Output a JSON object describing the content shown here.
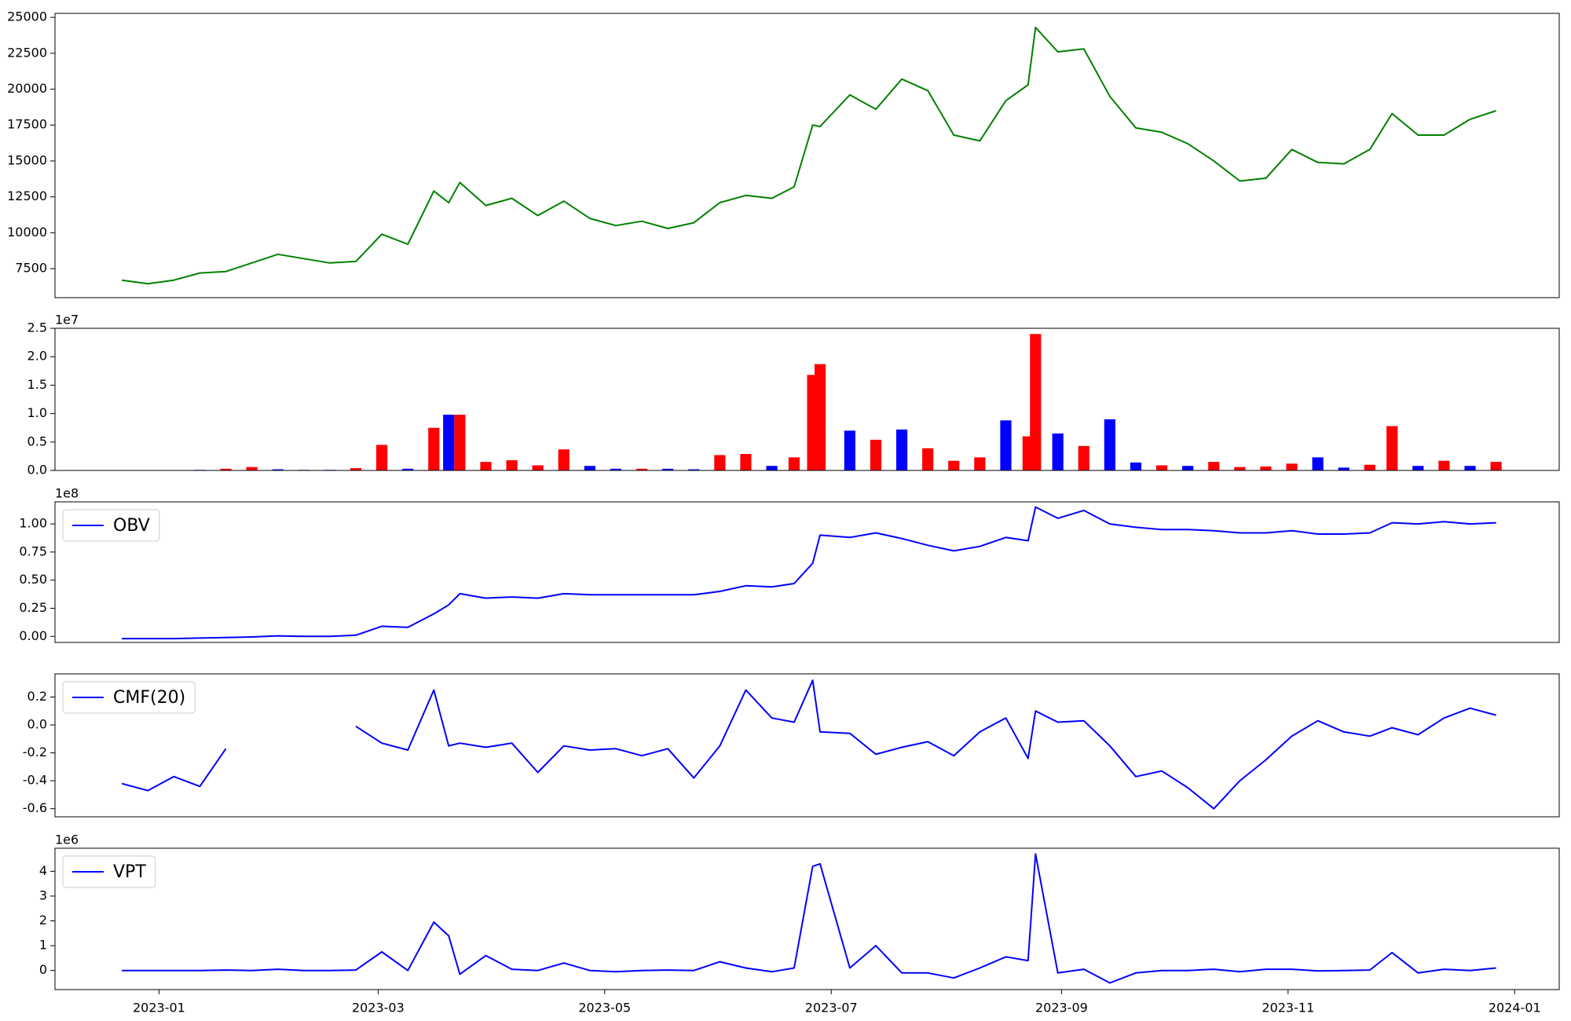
{
  "chart_data": [
    {
      "type": "line",
      "x": [
        "2022-12-22",
        "2022-12-29",
        "2023-01-05",
        "2023-01-12",
        "2023-01-19",
        "2023-01-26",
        "2023-02-02",
        "2023-02-09",
        "2023-02-16",
        "2023-02-23",
        "2023-03-02",
        "2023-03-09",
        "2023-03-16",
        "2023-03-20",
        "2023-03-23",
        "2023-03-30",
        "2023-04-06",
        "2023-04-13",
        "2023-04-20",
        "2023-04-27",
        "2023-05-04",
        "2023-05-11",
        "2023-05-18",
        "2023-05-25",
        "2023-06-01",
        "2023-06-08",
        "2023-06-15",
        "2023-06-21",
        "2023-06-26",
        "2023-06-28",
        "2023-07-06",
        "2023-07-13",
        "2023-07-20",
        "2023-07-27",
        "2023-08-03",
        "2023-08-10",
        "2023-08-17",
        "2023-08-23",
        "2023-08-25",
        "2023-08-31",
        "2023-09-07",
        "2023-09-14",
        "2023-09-21",
        "2023-09-28",
        "2023-10-05",
        "2023-10-12",
        "2023-10-19",
        "2023-10-26",
        "2023-11-02",
        "2023-11-09",
        "2023-11-16",
        "2023-11-23",
        "2023-11-29",
        "2023-12-06",
        "2023-12-13",
        "2023-12-20",
        "2023-12-27"
      ],
      "series": [
        {
          "color": "green",
          "values": [
            6700,
            6450,
            6700,
            7200,
            7300,
            7900,
            8500,
            8200,
            7900,
            8000,
            9900,
            9200,
            12900,
            12100,
            13500,
            11900,
            12400,
            11200,
            12200,
            11000,
            10500,
            10800,
            10300,
            10700,
            12100,
            12600,
            12400,
            13200,
            17500,
            17400,
            19600,
            18600,
            20700,
            19900,
            16800,
            16400,
            19200,
            20300,
            24300,
            22600,
            22800,
            19500,
            17300,
            17000,
            16200,
            15000,
            13600,
            13800,
            15800,
            14900,
            14800,
            15800,
            18300,
            16800,
            16800,
            17900,
            18500
          ]
        }
      ],
      "xlim": [
        "2022-12-04",
        "2024-01-13"
      ],
      "ylim": [
        5480,
        25280
      ],
      "yticks": [
        7500,
        10000,
        12500,
        15000,
        17500,
        20000,
        22500,
        25000
      ]
    },
    {
      "type": "bar",
      "x": [
        "2022-12-22",
        "2022-12-29",
        "2023-01-05",
        "2023-01-12",
        "2023-01-19",
        "2023-01-26",
        "2023-02-02",
        "2023-02-09",
        "2023-02-16",
        "2023-02-23",
        "2023-03-02",
        "2023-03-09",
        "2023-03-16",
        "2023-03-20",
        "2023-03-23",
        "2023-03-30",
        "2023-04-06",
        "2023-04-13",
        "2023-04-20",
        "2023-04-27",
        "2023-05-04",
        "2023-05-11",
        "2023-05-18",
        "2023-05-25",
        "2023-06-01",
        "2023-06-08",
        "2023-06-15",
        "2023-06-21",
        "2023-06-26",
        "2023-06-28",
        "2023-07-06",
        "2023-07-13",
        "2023-07-20",
        "2023-07-27",
        "2023-08-03",
        "2023-08-10",
        "2023-08-17",
        "2023-08-23",
        "2023-08-25",
        "2023-08-31",
        "2023-09-07",
        "2023-09-14",
        "2023-09-21",
        "2023-09-28",
        "2023-10-05",
        "2023-10-12",
        "2023-10-19",
        "2023-10-26",
        "2023-11-02",
        "2023-11-09",
        "2023-11-16",
        "2023-11-23",
        "2023-11-29",
        "2023-12-06",
        "2023-12-13",
        "2023-12-20",
        "2023-12-27"
      ],
      "values": [
        0,
        0,
        0,
        100000,
        300000,
        600000,
        200000,
        100000,
        100000,
        400000,
        4500000,
        300000,
        7500000,
        9800000,
        9800000,
        1500000,
        1800000,
        900000,
        3700000,
        800000,
        300000,
        300000,
        300000,
        200000,
        2700000,
        2900000,
        800000,
        2300000,
        16800000,
        18700000,
        7000000,
        5400000,
        7200000,
        3900000,
        1700000,
        2300000,
        8800000,
        6000000,
        24000000,
        6500000,
        4300000,
        9000000,
        1400000,
        900000,
        800000,
        1500000,
        600000,
        700000,
        1200000,
        2300000,
        500000,
        1000000,
        7800000,
        800000,
        1700000,
        800000,
        1500000
      ],
      "colors": [
        "blue",
        "blue",
        "blue",
        "blue",
        "red",
        "red",
        "blue",
        "blue",
        "blue",
        "red",
        "red",
        "blue",
        "red",
        "blue",
        "red",
        "red",
        "red",
        "red",
        "red",
        "blue",
        "blue",
        "red",
        "blue",
        "blue",
        "red",
        "red",
        "blue",
        "red",
        "red",
        "red",
        "blue",
        "red",
        "blue",
        "red",
        "red",
        "red",
        "blue",
        "red",
        "red",
        "blue",
        "red",
        "blue",
        "blue",
        "red",
        "blue",
        "red",
        "red",
        "red",
        "red",
        "blue",
        "blue",
        "red",
        "red",
        "blue",
        "red",
        "blue",
        "red"
      ],
      "xlim": [
        "2022-12-04",
        "2024-01-13"
      ],
      "ylim": [
        0,
        25000000
      ],
      "y_offset_label": "1e7",
      "yticks": [
        {
          "value": 0,
          "label": "0.0"
        },
        {
          "value": 5000000,
          "label": "0.5"
        },
        {
          "value": 10000000,
          "label": "1.0"
        },
        {
          "value": 15000000,
          "label": "1.5"
        },
        {
          "value": 20000000,
          "label": "2.0"
        },
        {
          "value": 25000000,
          "label": "2.5"
        }
      ]
    },
    {
      "type": "line",
      "x": [
        "2022-12-22",
        "2022-12-29",
        "2023-01-05",
        "2023-01-12",
        "2023-01-19",
        "2023-01-26",
        "2023-02-02",
        "2023-02-09",
        "2023-02-16",
        "2023-02-23",
        "2023-03-02",
        "2023-03-09",
        "2023-03-16",
        "2023-03-20",
        "2023-03-23",
        "2023-03-30",
        "2023-04-06",
        "2023-04-13",
        "2023-04-20",
        "2023-04-27",
        "2023-05-04",
        "2023-05-11",
        "2023-05-18",
        "2023-05-25",
        "2023-06-01",
        "2023-06-08",
        "2023-06-15",
        "2023-06-21",
        "2023-06-26",
        "2023-06-28",
        "2023-07-06",
        "2023-07-13",
        "2023-07-20",
        "2023-07-27",
        "2023-08-03",
        "2023-08-10",
        "2023-08-17",
        "2023-08-23",
        "2023-08-25",
        "2023-08-31",
        "2023-09-07",
        "2023-09-14",
        "2023-09-21",
        "2023-09-28",
        "2023-10-05",
        "2023-10-12",
        "2023-10-19",
        "2023-10-26",
        "2023-11-02",
        "2023-11-09",
        "2023-11-16",
        "2023-11-23",
        "2023-11-29",
        "2023-12-06",
        "2023-12-13",
        "2023-12-20",
        "2023-12-27"
      ],
      "series": [
        {
          "name": "OBV",
          "color": "blue",
          "values": [
            -2000000,
            -2000000,
            -2000000,
            -1500000,
            -1000000,
            -500000,
            500000,
            0,
            0,
            1000000,
            9000000,
            8000000,
            20000000,
            28000000,
            38000000,
            34000000,
            35000000,
            34000000,
            38000000,
            37000000,
            37000000,
            37000000,
            37000000,
            37000000,
            40000000,
            45000000,
            44000000,
            47000000,
            65000000,
            90000000,
            88000000,
            92000000,
            87000000,
            81000000,
            76000000,
            80000000,
            88000000,
            85000000,
            115000000,
            105000000,
            112000000,
            100000000,
            97000000,
            95000000,
            95000000,
            94000000,
            92000000,
            92000000,
            94000000,
            91000000,
            91000000,
            92000000,
            101000000,
            100000000,
            102000000,
            100000000,
            101000000
          ]
        }
      ],
      "xlim": [
        "2022-12-04",
        "2024-01-13"
      ],
      "ylim": [
        -5400000,
        119600000
      ],
      "y_offset_label": "1e8",
      "yticks": [
        {
          "value": 0,
          "label": "0.00"
        },
        {
          "value": 25000000,
          "label": "0.25"
        },
        {
          "value": 50000000,
          "label": "0.50"
        },
        {
          "value": 75000000,
          "label": "0.75"
        },
        {
          "value": 100000000,
          "label": "1.00"
        }
      ],
      "legend": "upper left"
    },
    {
      "type": "line",
      "x": [
        "2022-12-22",
        "2022-12-29",
        "2023-01-05",
        "2023-01-12",
        "2023-01-19",
        "2023-01-26",
        "2023-02-02",
        "2023-02-09",
        "2023-02-16",
        "2023-02-23",
        "2023-03-02",
        "2023-03-09",
        "2023-03-16",
        "2023-03-20",
        "2023-03-23",
        "2023-03-30",
        "2023-04-06",
        "2023-04-13",
        "2023-04-20",
        "2023-04-27",
        "2023-05-04",
        "2023-05-11",
        "2023-05-18",
        "2023-05-25",
        "2023-06-01",
        "2023-06-08",
        "2023-06-15",
        "2023-06-21",
        "2023-06-26",
        "2023-06-28",
        "2023-07-06",
        "2023-07-13",
        "2023-07-20",
        "2023-07-27",
        "2023-08-03",
        "2023-08-10",
        "2023-08-17",
        "2023-08-23",
        "2023-08-25",
        "2023-08-31",
        "2023-09-07",
        "2023-09-14",
        "2023-09-21",
        "2023-09-28",
        "2023-10-05",
        "2023-10-12",
        "2023-10-19",
        "2023-10-26",
        "2023-11-02",
        "2023-11-09",
        "2023-11-16",
        "2023-11-23",
        "2023-11-29",
        "2023-12-06",
        "2023-12-13",
        "2023-12-20",
        "2023-12-27"
      ],
      "series": [
        {
          "name": "CMF(20)",
          "color": "blue",
          "values": [
            -0.42,
            -0.47,
            -0.37,
            -0.44,
            -0.17,
            null,
            null,
            null,
            null,
            -0.01,
            -0.13,
            -0.18,
            0.25,
            -0.15,
            -0.13,
            -0.16,
            -0.13,
            -0.34,
            -0.15,
            -0.18,
            -0.17,
            -0.22,
            -0.17,
            -0.38,
            -0.15,
            0.25,
            0.05,
            0.02,
            0.32,
            -0.05,
            -0.06,
            -0.21,
            -0.16,
            -0.12,
            -0.22,
            -0.05,
            0.05,
            -0.24,
            0.1,
            0.02,
            0.03,
            -0.15,
            -0.37,
            -0.33,
            -0.45,
            -0.6,
            -0.4,
            -0.25,
            -0.08,
            0.03,
            -0.05,
            -0.08,
            -0.02,
            -0.07,
            0.05,
            0.12,
            0.07
          ]
        }
      ],
      "xlim": [
        "2022-12-04",
        "2024-01-13"
      ],
      "ylim": [
        -0.658,
        0.366
      ],
      "yticks": [
        {
          "value": -0.6,
          "label": "-0.6"
        },
        {
          "value": -0.4,
          "label": "-0.4"
        },
        {
          "value": -0.2,
          "label": "-0.2"
        },
        {
          "value": 0,
          "label": "0.0"
        },
        {
          "value": 0.2,
          "label": "0.2"
        }
      ],
      "legend": "upper left"
    },
    {
      "type": "line",
      "x": [
        "2022-12-22",
        "2022-12-29",
        "2023-01-05",
        "2023-01-12",
        "2023-01-19",
        "2023-01-26",
        "2023-02-02",
        "2023-02-09",
        "2023-02-16",
        "2023-02-23",
        "2023-03-02",
        "2023-03-09",
        "2023-03-16",
        "2023-03-20",
        "2023-03-23",
        "2023-03-30",
        "2023-04-06",
        "2023-04-13",
        "2023-04-20",
        "2023-04-27",
        "2023-05-04",
        "2023-05-11",
        "2023-05-18",
        "2023-05-25",
        "2023-06-01",
        "2023-06-08",
        "2023-06-15",
        "2023-06-21",
        "2023-06-26",
        "2023-06-28",
        "2023-07-06",
        "2023-07-13",
        "2023-07-20",
        "2023-07-27",
        "2023-08-03",
        "2023-08-10",
        "2023-08-17",
        "2023-08-23",
        "2023-08-25",
        "2023-08-31",
        "2023-09-07",
        "2023-09-14",
        "2023-09-21",
        "2023-09-28",
        "2023-10-05",
        "2023-10-12",
        "2023-10-19",
        "2023-10-26",
        "2023-11-02",
        "2023-11-09",
        "2023-11-16",
        "2023-11-23",
        "2023-11-29",
        "2023-12-06",
        "2023-12-13",
        "2023-12-20",
        "2023-12-27"
      ],
      "series": [
        {
          "name": "VPT",
          "color": "blue",
          "values": [
            0,
            0,
            0,
            0,
            20000,
            0,
            50000,
            0,
            0,
            20000,
            750000,
            0,
            1950000,
            1400000,
            -150000,
            600000,
            50000,
            0,
            300000,
            0,
            -50000,
            0,
            20000,
            0,
            350000,
            100000,
            -50000,
            100000,
            4200000,
            4300000,
            100000,
            1000000,
            -100000,
            -100000,
            -300000,
            100000,
            550000,
            400000,
            4700000,
            -100000,
            50000,
            -500000,
            -100000,
            0,
            0,
            50000,
            -50000,
            50000,
            50000,
            -20000,
            0,
            20000,
            720000,
            -100000,
            50000,
            0,
            100000
          ]
        }
      ],
      "xlim": [
        "2022-12-04",
        "2024-01-13"
      ],
      "ylim": [
        -770000,
        4930000
      ],
      "y_offset_label": "1e6",
      "yticks": [
        0,
        {
          "value": 1000000,
          "label": "1"
        },
        {
          "value": 2000000,
          "label": "2"
        },
        {
          "value": 3000000,
          "label": "3"
        },
        {
          "value": 4000000,
          "label": "4"
        }
      ],
      "xticks": [
        {
          "value": "2023-01-01",
          "label": "2023-01"
        },
        {
          "value": "2023-03-01",
          "label": "2023-03"
        },
        {
          "value": "2023-05-01",
          "label": "2023-05"
        },
        {
          "value": "2023-07-01",
          "label": "2023-07"
        },
        {
          "value": "2023-09-01",
          "label": "2023-09"
        },
        {
          "value": "2023-11-01",
          "label": "2023-11"
        },
        {
          "value": "2024-01-01",
          "label": "2024-01"
        }
      ],
      "legend": "upper left"
    }
  ]
}
